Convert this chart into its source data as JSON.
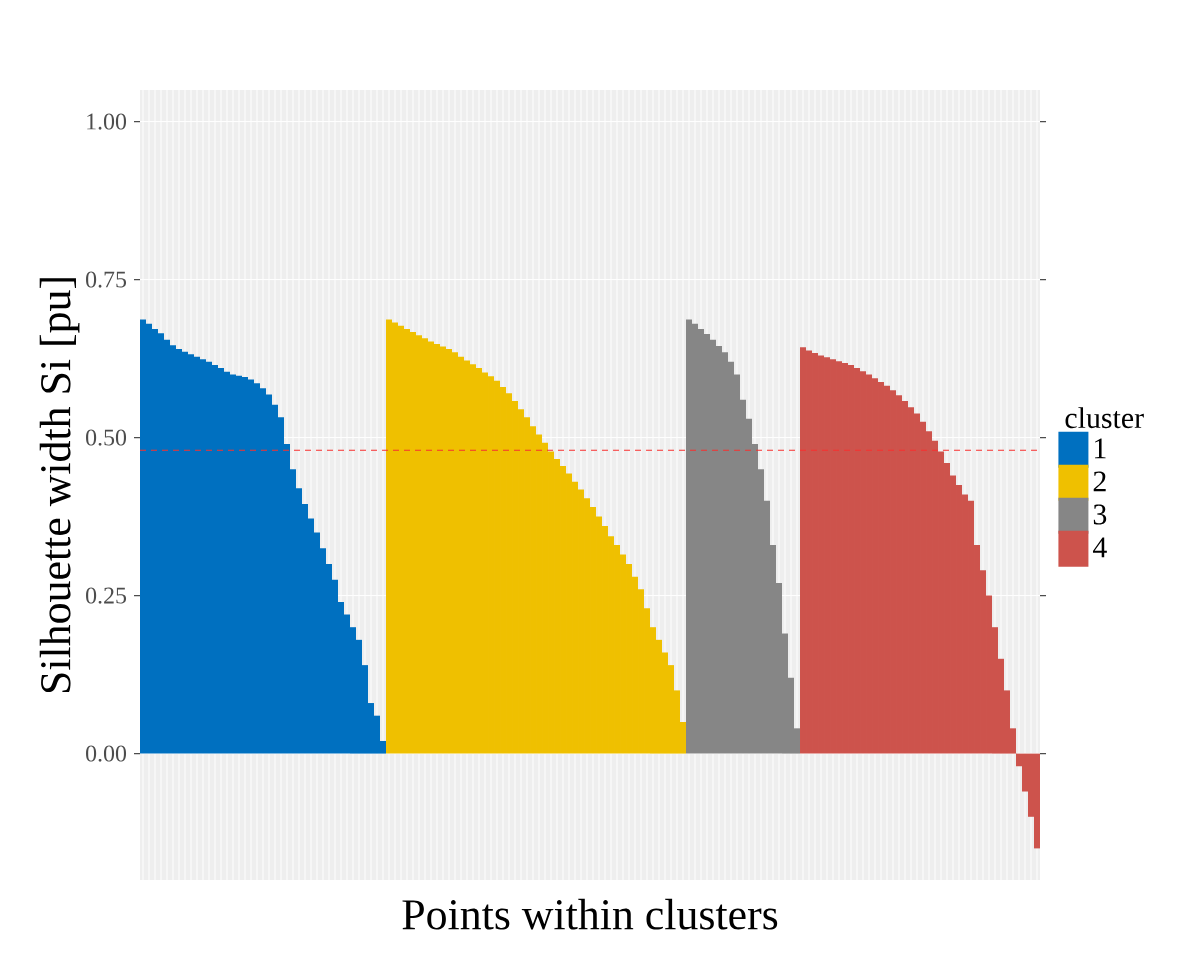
{
  "chart_data": {
    "type": "bar",
    "xlabel": "Points within clusters",
    "ylabel": "Silhouette width Si [pu]",
    "legend_title": "cluster",
    "categories": [
      null,
      null,
      null,
      null,
      null,
      null,
      null,
      null,
      null,
      null,
      null,
      null,
      null,
      null,
      null,
      null,
      null,
      null,
      null,
      null,
      null,
      null,
      null,
      null,
      null,
      null,
      null,
      null,
      null,
      null,
      null,
      null,
      null,
      null,
      null,
      null,
      null,
      null,
      null,
      null,
      null,
      null,
      null,
      null,
      null,
      null,
      null,
      null,
      null,
      null,
      null,
      null,
      null,
      null,
      null,
      null,
      null,
      null,
      null,
      null,
      null,
      null,
      null,
      null,
      null,
      null,
      null,
      null,
      null,
      null,
      null,
      null,
      null,
      null,
      null,
      null,
      null,
      null,
      null,
      null,
      null,
      null,
      null,
      null,
      null,
      null,
      null,
      null,
      null,
      null,
      null,
      null,
      null,
      null,
      null,
      null,
      null,
      null,
      null,
      null,
      null,
      null,
      null,
      null,
      null,
      null,
      null,
      null,
      null,
      null,
      null,
      null,
      null,
      null,
      null,
      null,
      null,
      null,
      null,
      null,
      null,
      null,
      null,
      null,
      null,
      null,
      null,
      null,
      null,
      null,
      null,
      null,
      null,
      null,
      null,
      null,
      null,
      null,
      null,
      null,
      null,
      null,
      null,
      null,
      null,
      null,
      null,
      null,
      null,
      null
    ],
    "series": [
      {
        "name": "1",
        "color": "#0070c0",
        "values": [
          0.687,
          0.68,
          0.672,
          0.665,
          0.655,
          0.646,
          0.64,
          0.636,
          0.632,
          0.628,
          0.624,
          0.62,
          0.615,
          0.61,
          0.604,
          0.6,
          0.598,
          0.596,
          0.592,
          0.586,
          0.578,
          0.568,
          0.552,
          0.532,
          0.49,
          0.45,
          0.42,
          0.395,
          0.372,
          0.35,
          0.325,
          0.3,
          0.275,
          0.24,
          0.22,
          0.2,
          0.18,
          0.14,
          0.08,
          0.06,
          0.02,
          null,
          null,
          null,
          null,
          null,
          null,
          null,
          null,
          null,
          null,
          null,
          null,
          null,
          null,
          null,
          null,
          null,
          null,
          null,
          null,
          null,
          null,
          null,
          null,
          null,
          null,
          null,
          null,
          null,
          null,
          null,
          null,
          null,
          null,
          null,
          null,
          null,
          null,
          null,
          null,
          null,
          null,
          null,
          null,
          null,
          null,
          null,
          null,
          null,
          null,
          null,
          null,
          null,
          null,
          null,
          null,
          null,
          null,
          null,
          null,
          null,
          null,
          null,
          null,
          null,
          null,
          null,
          null,
          null,
          null,
          null,
          null,
          null,
          null,
          null,
          null,
          null,
          null,
          null,
          null,
          null,
          null,
          null,
          null,
          null,
          null,
          null,
          null,
          null,
          null,
          null,
          null,
          null,
          null,
          null,
          null,
          null,
          null,
          null,
          null,
          null,
          null,
          null,
          null,
          null,
          null,
          null,
          null,
          null
        ]
      },
      {
        "name": "2",
        "color": "#efc000",
        "values": [
          null,
          null,
          null,
          null,
          null,
          null,
          null,
          null,
          null,
          null,
          null,
          null,
          null,
          null,
          null,
          null,
          null,
          null,
          null,
          null,
          null,
          null,
          null,
          null,
          null,
          null,
          null,
          null,
          null,
          null,
          null,
          null,
          null,
          null,
          null,
          null,
          null,
          null,
          null,
          null,
          null,
          0.687,
          0.682,
          0.677,
          0.672,
          0.667,
          0.662,
          0.657,
          0.652,
          0.648,
          0.644,
          0.64,
          0.635,
          0.628,
          0.622,
          0.616,
          0.61,
          0.603,
          0.597,
          0.59,
          0.58,
          0.57,
          0.558,
          0.545,
          0.532,
          0.518,
          0.505,
          0.492,
          0.478,
          0.466,
          0.455,
          0.443,
          0.43,
          0.418,
          0.404,
          0.39,
          0.375,
          0.36,
          0.344,
          0.33,
          0.315,
          0.3,
          0.28,
          0.26,
          0.23,
          0.2,
          0.18,
          0.16,
          0.14,
          0.1,
          0.05,
          null,
          null,
          null,
          null,
          null,
          null,
          null,
          null,
          null,
          null,
          null,
          null,
          null,
          null,
          null,
          null,
          null,
          null,
          null,
          null,
          null,
          null,
          null,
          null,
          null,
          null,
          null,
          null,
          null,
          null,
          null,
          null,
          null,
          null,
          null,
          null,
          null,
          null,
          null,
          null,
          null,
          null,
          null,
          null,
          null,
          null,
          null,
          null,
          null,
          null,
          null,
          null,
          null,
          null,
          null,
          null,
          null,
          null,
          null
        ]
      },
      {
        "name": "3",
        "color": "#868686",
        "values": [
          null,
          null,
          null,
          null,
          null,
          null,
          null,
          null,
          null,
          null,
          null,
          null,
          null,
          null,
          null,
          null,
          null,
          null,
          null,
          null,
          null,
          null,
          null,
          null,
          null,
          null,
          null,
          null,
          null,
          null,
          null,
          null,
          null,
          null,
          null,
          null,
          null,
          null,
          null,
          null,
          null,
          null,
          null,
          null,
          null,
          null,
          null,
          null,
          null,
          null,
          null,
          null,
          null,
          null,
          null,
          null,
          null,
          null,
          null,
          null,
          null,
          null,
          null,
          null,
          null,
          null,
          null,
          null,
          null,
          null,
          null,
          null,
          null,
          null,
          null,
          null,
          null,
          null,
          null,
          null,
          null,
          null,
          null,
          null,
          null,
          null,
          null,
          null,
          null,
          null,
          null,
          0.687,
          0.68,
          0.672,
          0.664,
          0.655,
          0.645,
          0.635,
          0.62,
          0.6,
          0.56,
          0.53,
          0.49,
          0.45,
          0.4,
          0.33,
          0.27,
          0.19,
          0.12,
          0.04,
          null,
          null,
          null,
          null,
          null,
          null,
          null,
          null,
          null,
          null,
          null,
          null,
          null,
          null,
          null,
          null,
          null,
          null,
          null,
          null,
          null,
          null,
          null,
          null,
          null,
          null,
          null,
          null,
          null,
          null,
          null,
          null,
          null,
          null,
          null,
          null,
          null,
          null,
          null,
          null
        ]
      },
      {
        "name": "4",
        "color": "#cd534c",
        "values": [
          null,
          null,
          null,
          null,
          null,
          null,
          null,
          null,
          null,
          null,
          null,
          null,
          null,
          null,
          null,
          null,
          null,
          null,
          null,
          null,
          null,
          null,
          null,
          null,
          null,
          null,
          null,
          null,
          null,
          null,
          null,
          null,
          null,
          null,
          null,
          null,
          null,
          null,
          null,
          null,
          null,
          null,
          null,
          null,
          null,
          null,
          null,
          null,
          null,
          null,
          null,
          null,
          null,
          null,
          null,
          null,
          null,
          null,
          null,
          null,
          null,
          null,
          null,
          null,
          null,
          null,
          null,
          null,
          null,
          null,
          null,
          null,
          null,
          null,
          null,
          null,
          null,
          null,
          null,
          null,
          null,
          null,
          null,
          null,
          null,
          null,
          null,
          null,
          null,
          null,
          null,
          null,
          null,
          null,
          null,
          null,
          null,
          null,
          null,
          null,
          null,
          null,
          null,
          null,
          null,
          null,
          null,
          null,
          null,
          null,
          0.643,
          0.638,
          0.634,
          0.63,
          0.627,
          0.624,
          0.621,
          0.618,
          0.615,
          0.61,
          0.605,
          0.6,
          0.594,
          0.588,
          0.582,
          0.575,
          0.567,
          0.558,
          0.548,
          0.538,
          0.525,
          0.51,
          0.495,
          0.478,
          0.46,
          0.44,
          0.425,
          0.41,
          0.4,
          0.33,
          0.29,
          0.25,
          0.2,
          0.15,
          0.1,
          0.04,
          -0.02,
          -0.06,
          -0.1,
          -0.15
        ]
      }
    ],
    "stacked": true,
    "ylim": [
      -0.2,
      1.05
    ],
    "yticks": [
      {
        "value": 0,
        "label": "0.00"
      },
      {
        "value": 0.25,
        "label": "0.25"
      },
      {
        "value": 0.5,
        "label": "0.50"
      },
      {
        "value": 0.75,
        "label": "0.75"
      },
      {
        "value": 1,
        "label": "1.00"
      }
    ],
    "ref_lines": [
      {
        "axis": "y",
        "value": 0.48,
        "color": "#f8312f",
        "line_style": "dashed"
      }
    ],
    "grid": true,
    "legend": "right",
    "tick_labels": "y"
  }
}
